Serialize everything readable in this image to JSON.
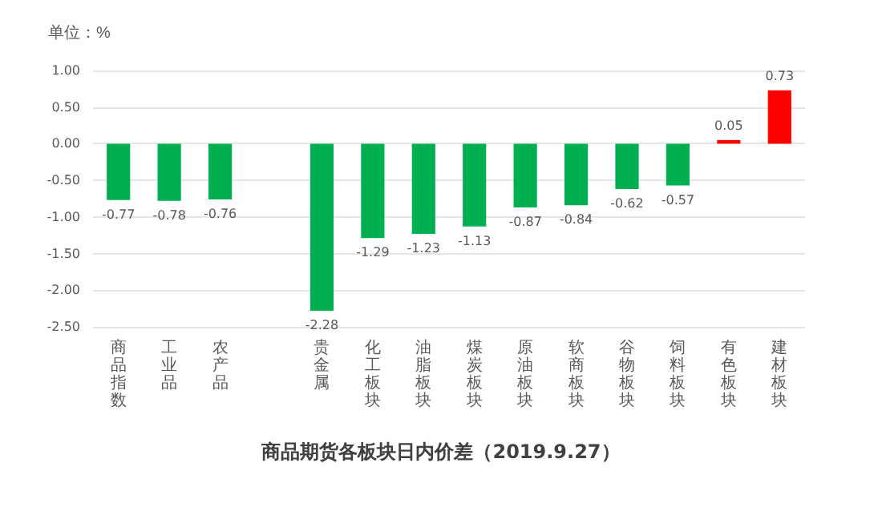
{
  "chart_data": {
    "type": "bar",
    "title": "商品期货各板块日内价差（2019.9.27）",
    "annotations": [
      "单位：%"
    ],
    "categories": [
      "商品指数",
      "工业品",
      "农产品",
      null,
      "贵金属",
      "化工板块",
      "油脂板块",
      "煤炭板块",
      "原油板块",
      "软商板块",
      "谷物板块",
      "饲料板块",
      "有色板块",
      "建材板块"
    ],
    "values": [
      -0.77,
      -0.78,
      -0.76,
      null,
      -2.28,
      -1.29,
      -1.23,
      -1.13,
      -0.87,
      -0.84,
      -0.62,
      -0.57,
      0.05,
      0.73
    ],
    "colors": [
      "#00b050",
      "#00b050",
      "#00b050",
      "#00b050",
      "#00b050",
      "#00b050",
      "#00b050",
      "#00b050",
      "#00b050",
      "#00b050",
      "#00b050",
      "#00b050",
      "#ff0000",
      "#ff0000"
    ],
    "ylim": [
      -2.5,
      1
    ],
    "yticks": [
      {
        "value": -2.5,
        "label": "-2.50"
      },
      {
        "value": -2,
        "label": "-2.00"
      },
      {
        "value": -1.5,
        "label": "-1.50"
      },
      {
        "value": -1,
        "label": "-1.00"
      },
      {
        "value": -0.5,
        "label": "-0.50"
      },
      {
        "value": 0,
        "label": "0.00"
      },
      {
        "value": 0.5,
        "label": "0.50"
      },
      {
        "value": 1,
        "label": "1.00"
      }
    ],
    "grid": "y",
    "data_labels": true
  }
}
